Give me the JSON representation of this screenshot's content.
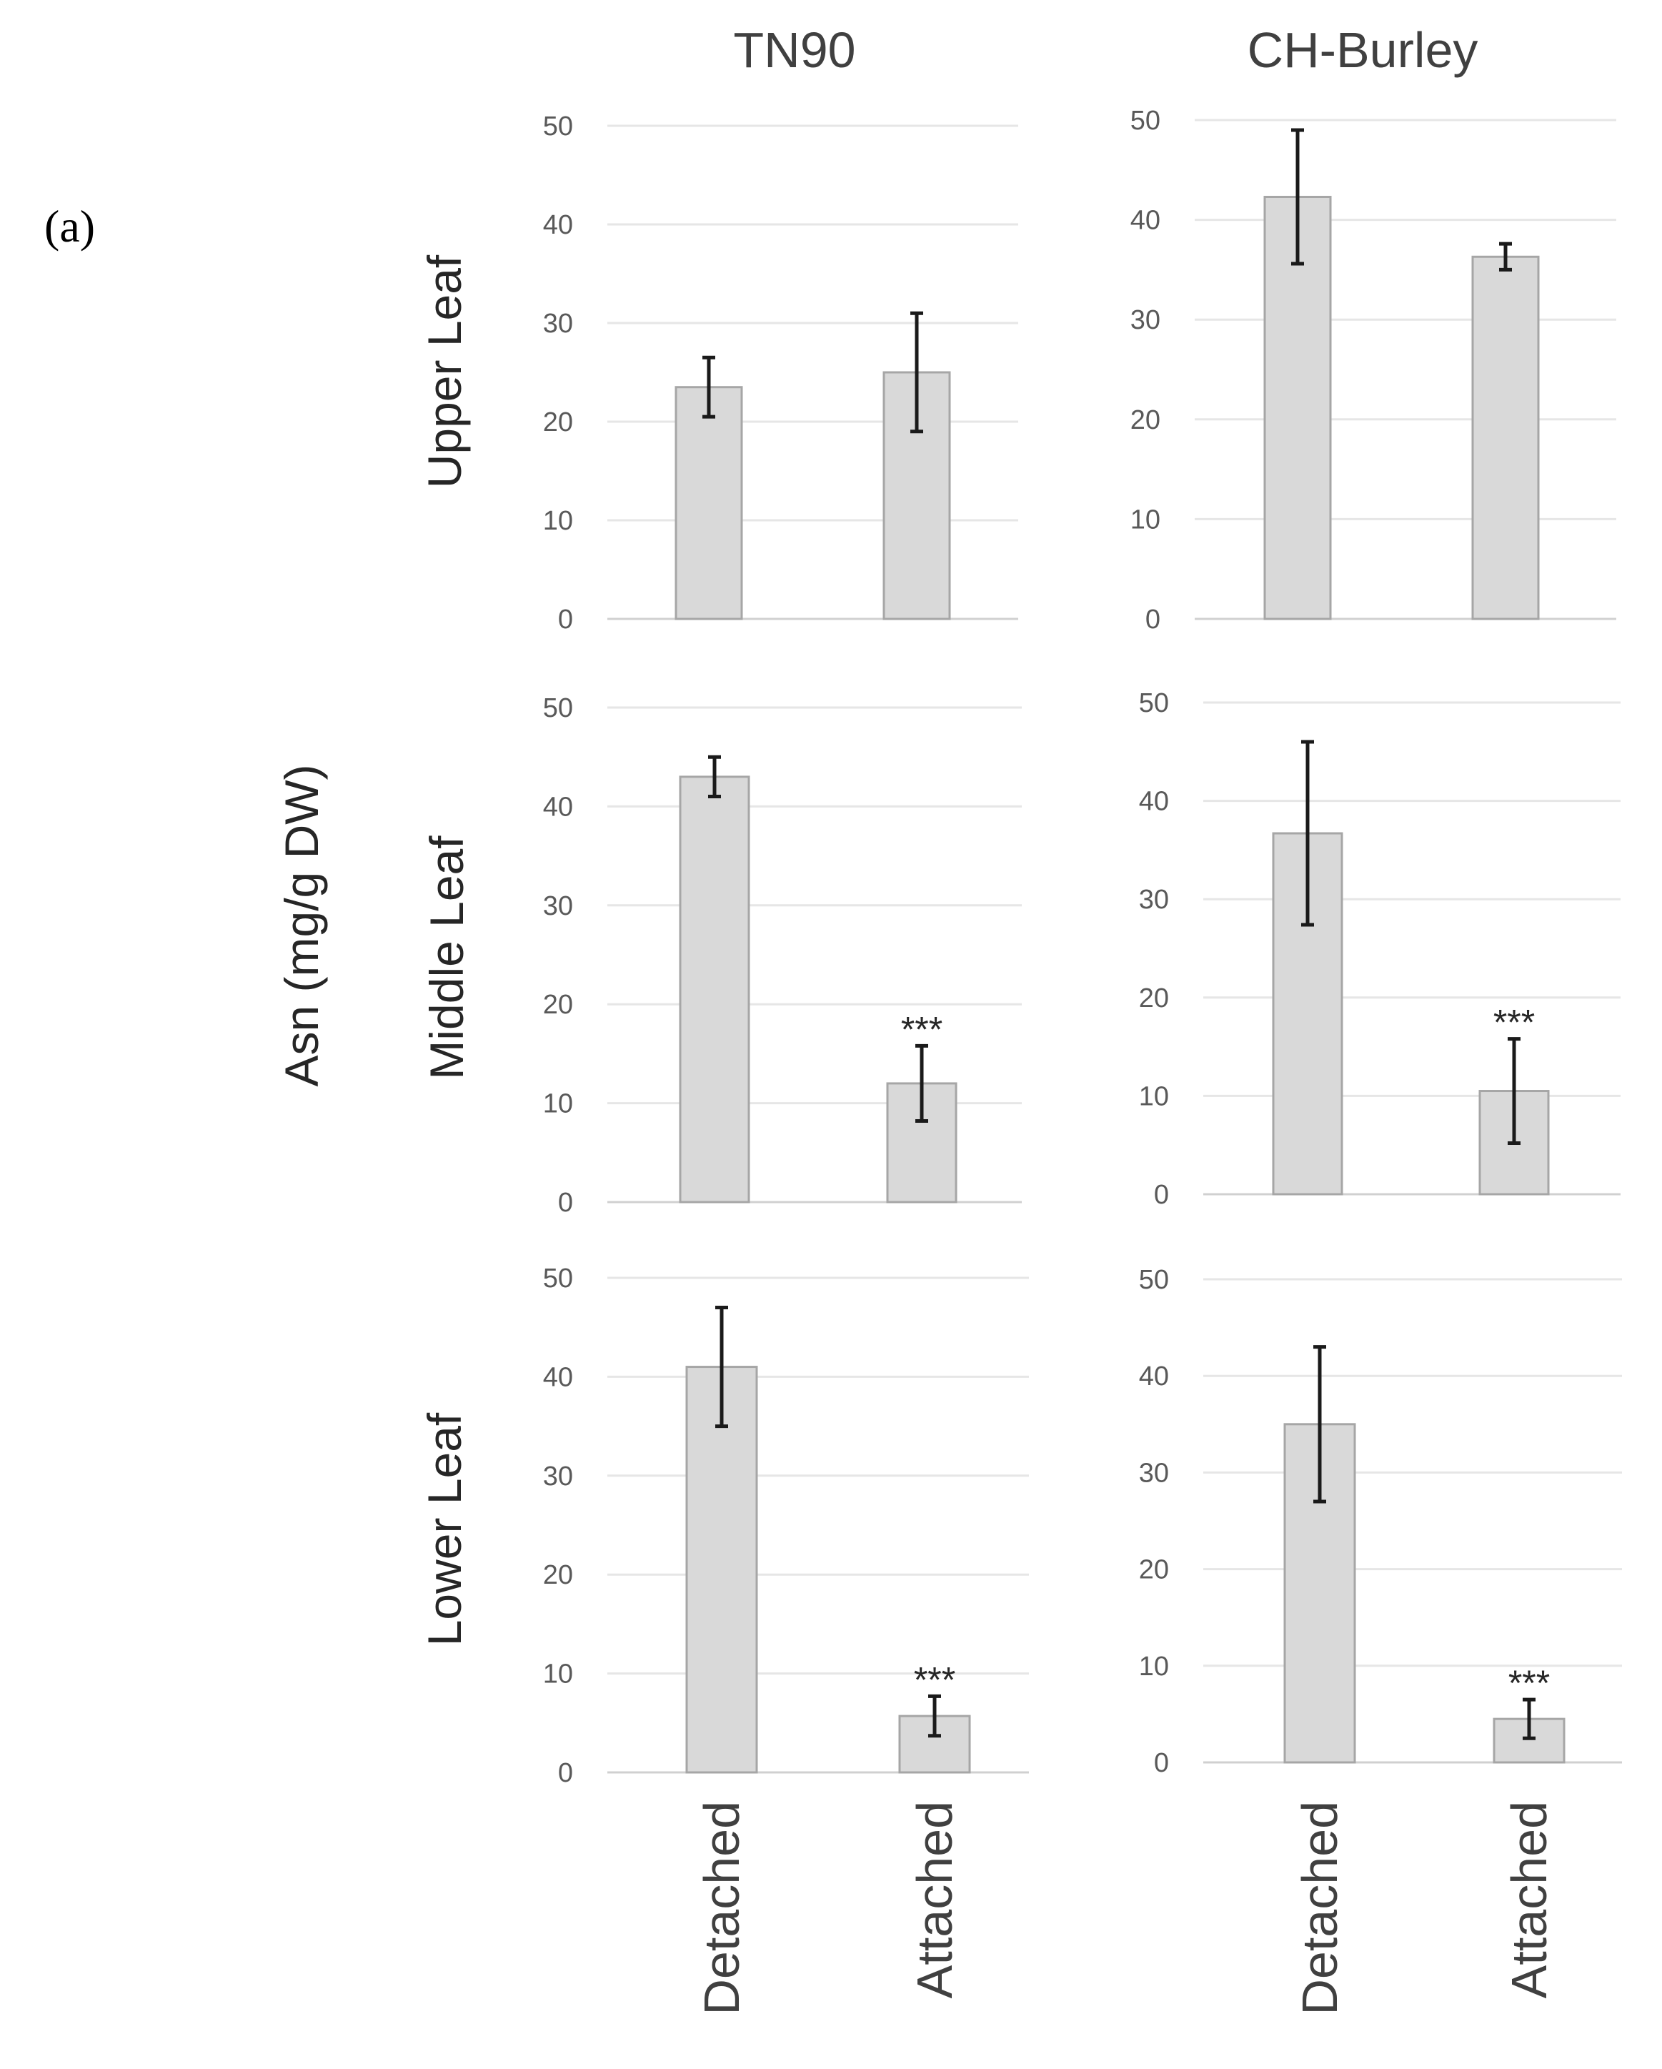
{
  "panel_label": "(a)",
  "chart_data": {
    "type": "bar",
    "ylabel": "Asn (mg/g DW)",
    "ylim": [
      0,
      50
    ],
    "yticks": [
      "0",
      "10",
      "20",
      "30",
      "40",
      "50"
    ],
    "categories": [
      "Detached",
      "Attached"
    ],
    "columns": [
      "TN90",
      "CH-Burley"
    ],
    "rows": [
      "Upper Leaf",
      "Middle Leaf",
      "Lower Leaf"
    ],
    "panels": [
      {
        "id": "tn90-upper",
        "column": "TN90",
        "row": "Upper Leaf",
        "values": [
          23.5,
          25
        ],
        "errors": [
          3,
          6
        ],
        "significance": [
          "",
          ""
        ]
      },
      {
        "id": "chb-upper",
        "column": "CH-Burley",
        "row": "Upper Leaf",
        "values": [
          42.3,
          36.3
        ],
        "errors": [
          6.7,
          1.3
        ],
        "significance": [
          "",
          ""
        ]
      },
      {
        "id": "tn90-middle",
        "column": "TN90",
        "row": "Middle Leaf",
        "values": [
          43,
          12
        ],
        "errors": [
          2,
          3.8
        ],
        "significance": [
          "",
          "***"
        ]
      },
      {
        "id": "chb-middle",
        "column": "CH-Burley",
        "row": "Middle Leaf",
        "values": [
          36.7,
          10.5
        ],
        "errors": [
          9.3,
          5.3
        ],
        "significance": [
          "",
          "***"
        ]
      },
      {
        "id": "tn90-lower",
        "column": "TN90",
        "row": "Lower Leaf",
        "values": [
          41,
          5.7
        ],
        "errors": [
          6,
          2
        ],
        "significance": [
          "",
          "***"
        ]
      },
      {
        "id": "chb-lower",
        "column": "CH-Burley",
        "row": "Lower Leaf",
        "values": [
          35,
          4.5
        ],
        "errors": [
          8,
          2
        ],
        "significance": [
          "",
          "***"
        ]
      }
    ]
  }
}
